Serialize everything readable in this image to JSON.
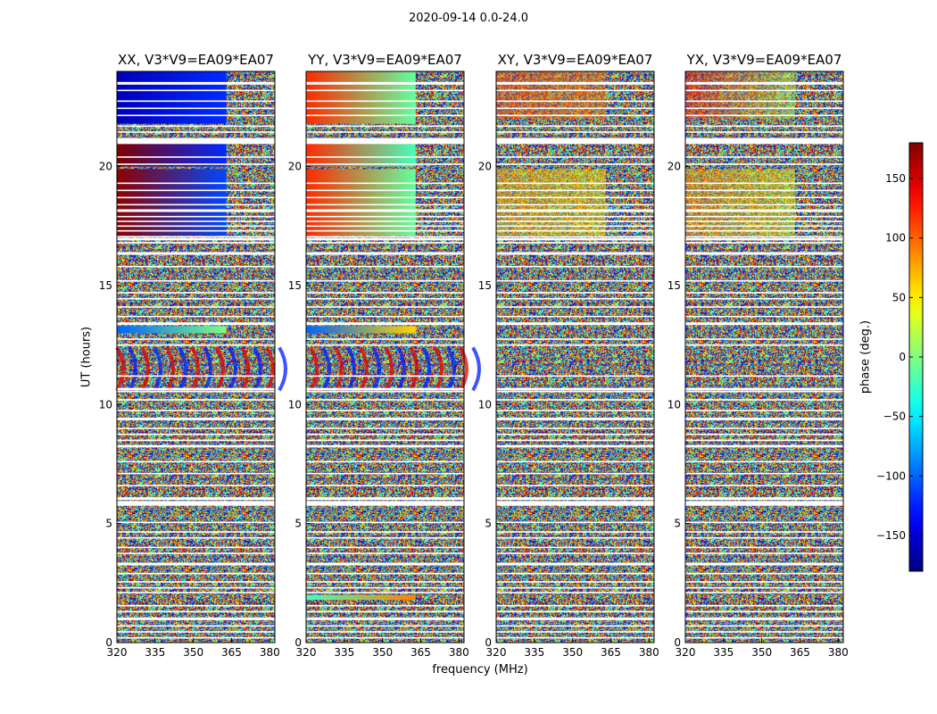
{
  "suptitle": "2020-09-14 0.0-24.0",
  "xlabel": "frequency (MHz)",
  "ylabel": "UT (hours)",
  "colorbar": {
    "label": "phase (deg.)",
    "ticks": [
      150,
      100,
      50,
      0,
      -50,
      -100,
      -150
    ],
    "tick_labels": [
      "150",
      "100",
      "50",
      "0",
      "−50",
      "−100",
      "−150"
    ],
    "range": [
      -180,
      180
    ],
    "colormap": "jet"
  },
  "chart_data": [
    {
      "type": "heatmap",
      "title": "XX, V3*V9=EA09*EA07",
      "xlim": [
        320,
        382
      ],
      "ylim": [
        0,
        24
      ],
      "xticks": [
        320,
        335,
        350,
        365,
        380
      ],
      "yticks": [
        0,
        5,
        10,
        15,
        20
      ],
      "xtick_labels": [
        "320",
        "335",
        "350",
        "365",
        "380"
      ],
      "ytick_labels": [
        "0",
        "5",
        "10",
        "15",
        "20"
      ],
      "coherent_bands": [
        {
          "t": [
            21.8,
            24.0
          ],
          "phase_320": -160,
          "phase_363": -120,
          "note": "smooth gradient, noisy above 363 MHz"
        },
        {
          "t": [
            20.0,
            21.0
          ],
          "phase_320": 180,
          "phase_363": -120
        },
        {
          "t": [
            17.1,
            19.9
          ],
          "phase_320": 175,
          "phase_363": -110
        },
        {
          "t": [
            13.0,
            13.3
          ],
          "phase_320": -100,
          "phase_363": 0
        },
        {
          "t": [
            10.6,
            12.4
          ],
          "pattern": "fringe"
        }
      ],
      "noise_phase": "uniform -180..180"
    },
    {
      "type": "heatmap",
      "title": "YY, V3*V9=EA09*EA07",
      "xlim": [
        320,
        382
      ],
      "ylim": [
        0,
        24
      ],
      "xticks": [
        320,
        335,
        350,
        365,
        380
      ],
      "yticks": [
        0,
        5,
        10,
        15,
        20
      ],
      "xtick_labels": [
        "320",
        "335",
        "350",
        "365",
        "380"
      ],
      "ytick_labels": [
        "0",
        "5",
        "10",
        "15",
        "20"
      ],
      "coherent_bands": [
        {
          "t": [
            21.8,
            24.0
          ],
          "phase_320": 120,
          "phase_363": -10
        },
        {
          "t": [
            20.0,
            21.0
          ],
          "phase_320": 120,
          "phase_363": -20
        },
        {
          "t": [
            17.1,
            19.9
          ],
          "phase_320": 120,
          "phase_363": -10
        },
        {
          "t": [
            13.0,
            13.3
          ],
          "phase_320": -100,
          "phase_363": 60
        },
        {
          "t": [
            1.8,
            2.0
          ],
          "phase_320": -20,
          "phase_363": 90
        },
        {
          "t": [
            10.6,
            12.4
          ],
          "pattern": "fringe"
        }
      ],
      "noise_phase": "uniform -180..180"
    },
    {
      "type": "heatmap",
      "title": "XY, V3*V9=EA09*EA07",
      "xlim": [
        320,
        382
      ],
      "ylim": [
        0,
        24
      ],
      "xticks": [
        320,
        335,
        350,
        365,
        380
      ],
      "yticks": [
        0,
        5,
        10,
        15,
        20
      ],
      "xtick_labels": [
        "320",
        "335",
        "350",
        "365",
        "380"
      ],
      "ytick_labels": [
        "0",
        "5",
        "10",
        "15",
        "20"
      ],
      "coherent_bands": [
        {
          "t": [
            22.0,
            24.0
          ],
          "phase_320": 110,
          "phase_363": 90,
          "note": "weak, noisy"
        },
        {
          "t": [
            17.1,
            19.9
          ],
          "phase_320": 70,
          "phase_363": 50,
          "note": "weak, noisy"
        }
      ],
      "noise_phase": "uniform -180..180"
    },
    {
      "type": "heatmap",
      "title": "YX, V3*V9=EA09*EA07",
      "xlim": [
        320,
        382
      ],
      "ylim": [
        0,
        24
      ],
      "xticks": [
        320,
        335,
        350,
        365,
        380
      ],
      "yticks": [
        0,
        5,
        10,
        15,
        20
      ],
      "xtick_labels": [
        "320",
        "335",
        "350",
        "365",
        "380"
      ],
      "ytick_labels": [
        "0",
        "5",
        "10",
        "15",
        "20"
      ],
      "coherent_bands": [
        {
          "t": [
            22.0,
            24.0
          ],
          "phase_320": 130,
          "phase_363": 20,
          "note": "weak, noisy"
        },
        {
          "t": [
            17.1,
            19.9
          ],
          "phase_320": 80,
          "phase_363": 40,
          "note": "weak, noisy"
        }
      ],
      "noise_phase": "uniform -180..180"
    }
  ]
}
